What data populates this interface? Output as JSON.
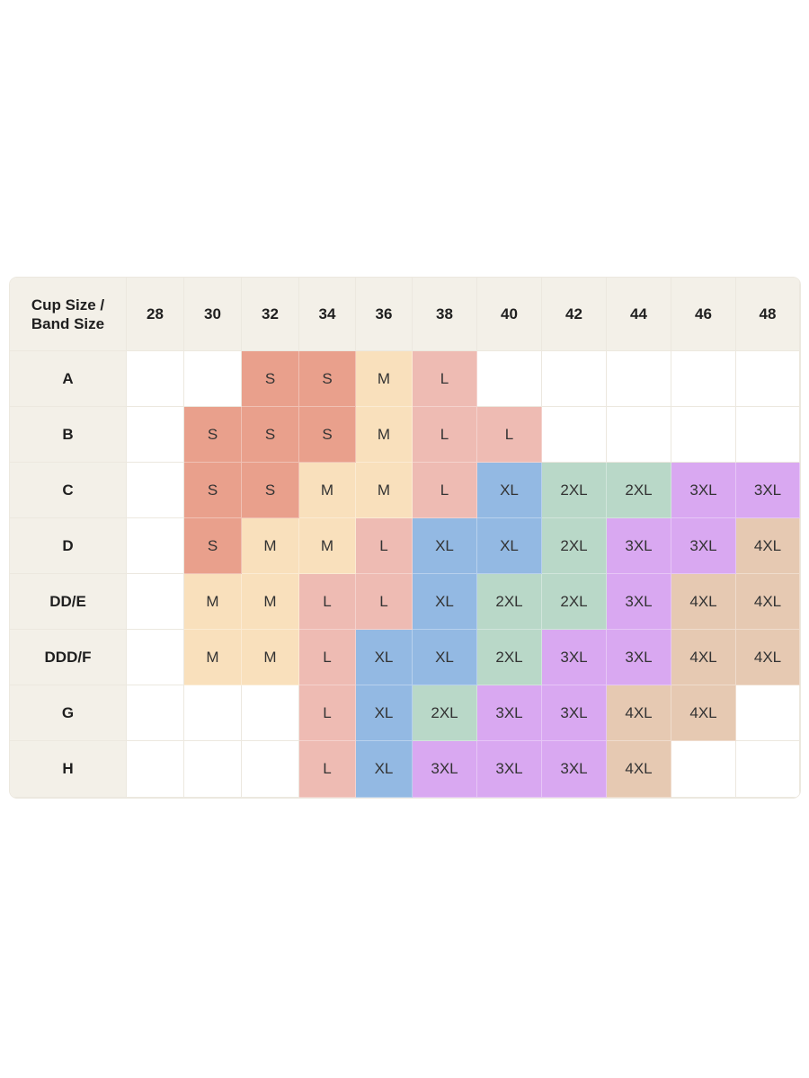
{
  "table": {
    "corner_line1": "Cup Size /",
    "corner_line2": "Band Size",
    "band_sizes": [
      "28",
      "30",
      "32",
      "34",
      "36",
      "38",
      "40",
      "42",
      "44",
      "46",
      "48"
    ],
    "rows": [
      {
        "cup": "A",
        "cells": [
          "",
          "",
          "S",
          "S",
          "M",
          "L",
          "",
          "",
          "",
          "",
          ""
        ]
      },
      {
        "cup": "B",
        "cells": [
          "",
          "S",
          "S",
          "S",
          "M",
          "L",
          "L",
          "",
          "",
          "",
          ""
        ]
      },
      {
        "cup": "C",
        "cells": [
          "",
          "S",
          "S",
          "M",
          "M",
          "L",
          "XL",
          "2XL",
          "2XL",
          "3XL",
          "3XL"
        ]
      },
      {
        "cup": "D",
        "cells": [
          "",
          "S",
          "M",
          "M",
          "L",
          "XL",
          "XL",
          "2XL",
          "3XL",
          "3XL",
          "4XL"
        ]
      },
      {
        "cup": "DD/E",
        "cells": [
          "",
          "M",
          "M",
          "L",
          "L",
          "XL",
          "2XL",
          "2XL",
          "3XL",
          "4XL",
          "4XL"
        ]
      },
      {
        "cup": "DDD/F",
        "cells": [
          "",
          "M",
          "M",
          "L",
          "XL",
          "XL",
          "2XL",
          "3XL",
          "3XL",
          "4XL",
          "4XL"
        ]
      },
      {
        "cup": "G",
        "cells": [
          "",
          "",
          "",
          "L",
          "XL",
          "2XL",
          "3XL",
          "3XL",
          "4XL",
          "4XL",
          ""
        ]
      },
      {
        "cup": "H",
        "cells": [
          "",
          "",
          "",
          "L",
          "XL",
          "3XL",
          "3XL",
          "3XL",
          "4XL",
          "",
          ""
        ]
      }
    ]
  },
  "colors": {
    "header_bg": "#f3f0e8",
    "grid_line": "#ece8df",
    "empty": "#ffffff",
    "S": "#e9a08c",
    "M": "#f9e0bc",
    "L": "#eebbb3",
    "XL": "#93b9e3",
    "2XL": "#b9d8c8",
    "3XL": "#d9a8f1",
    "4XL": "#e6c9b2"
  }
}
